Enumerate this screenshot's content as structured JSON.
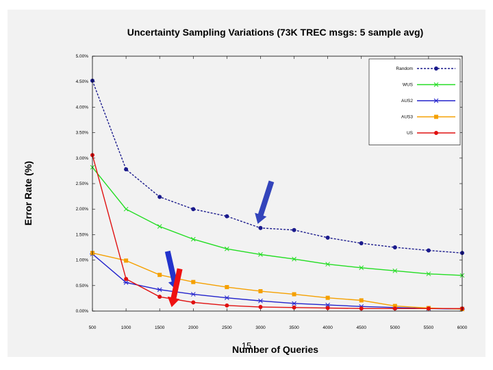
{
  "chart_data": {
    "type": "line",
    "title": "Uncertainty Sampling Variations (73K TREC msgs: 5 sample avg)",
    "xlabel": "Number of Queries",
    "ylabel": "Error Rate (%)",
    "x": [
      500,
      1000,
      1500,
      2000,
      2500,
      3000,
      3500,
      4000,
      4500,
      5000,
      5500,
      6000
    ],
    "xticks": [
      "500",
      "1000",
      "1500",
      "2000",
      "2500",
      "3000",
      "3500",
      "4000",
      "4500",
      "5000",
      "5500",
      "6000"
    ],
    "yticks": [
      "0.00%",
      "0.50%",
      "1.00%",
      "1.50%",
      "2.00%",
      "2.50%",
      "3.00%",
      "3.50%",
      "4.00%",
      "4.50%",
      "5.00%"
    ],
    "xlim": [
      500,
      6000
    ],
    "ylim": [
      0,
      5
    ],
    "legend_position": "top-right",
    "series": [
      {
        "name": "Random",
        "color": "#1a1a8c",
        "marker": "dot",
        "dashed": true,
        "values": [
          4.52,
          2.78,
          2.24,
          2.0,
          1.86,
          1.63,
          1.59,
          1.44,
          1.33,
          1.25,
          1.19,
          1.14
        ]
      },
      {
        "name": "WUS",
        "color": "#22dd22",
        "marker": "x",
        "dashed": false,
        "values": [
          2.82,
          2.0,
          1.66,
          1.41,
          1.22,
          1.11,
          1.02,
          0.92,
          0.85,
          0.79,
          0.73,
          0.7
        ]
      },
      {
        "name": "AUS2",
        "color": "#2222cc",
        "marker": "star",
        "dashed": false,
        "values": [
          1.12,
          0.56,
          0.42,
          0.33,
          0.26,
          0.2,
          0.15,
          0.12,
          0.09,
          0.07,
          0.05,
          0.04
        ]
      },
      {
        "name": "AUS3",
        "color": "#f5a000",
        "marker": "square",
        "dashed": false,
        "values": [
          1.14,
          0.99,
          0.71,
          0.57,
          0.47,
          0.39,
          0.33,
          0.26,
          0.21,
          0.1,
          0.06,
          0.04
        ]
      },
      {
        "name": "US",
        "color": "#e01010",
        "marker": "dot",
        "dashed": false,
        "values": [
          3.06,
          0.63,
          0.28,
          0.17,
          0.11,
          0.08,
          0.07,
          0.06,
          0.05,
          0.05,
          0.05,
          0.05
        ]
      }
    ],
    "annotations": [
      {
        "kind": "arrow",
        "color": "#3344bb",
        "points_to": {
          "series": "Random",
          "x": 3000
        }
      },
      {
        "kind": "arrow",
        "color": "#2233cc",
        "points_to": {
          "series": "AUS2",
          "x": 1750
        }
      },
      {
        "kind": "arrow",
        "color": "#ee1111",
        "points_to": {
          "series": "US",
          "x": 1800
        }
      }
    ]
  },
  "slide": {
    "page_number": "15"
  }
}
